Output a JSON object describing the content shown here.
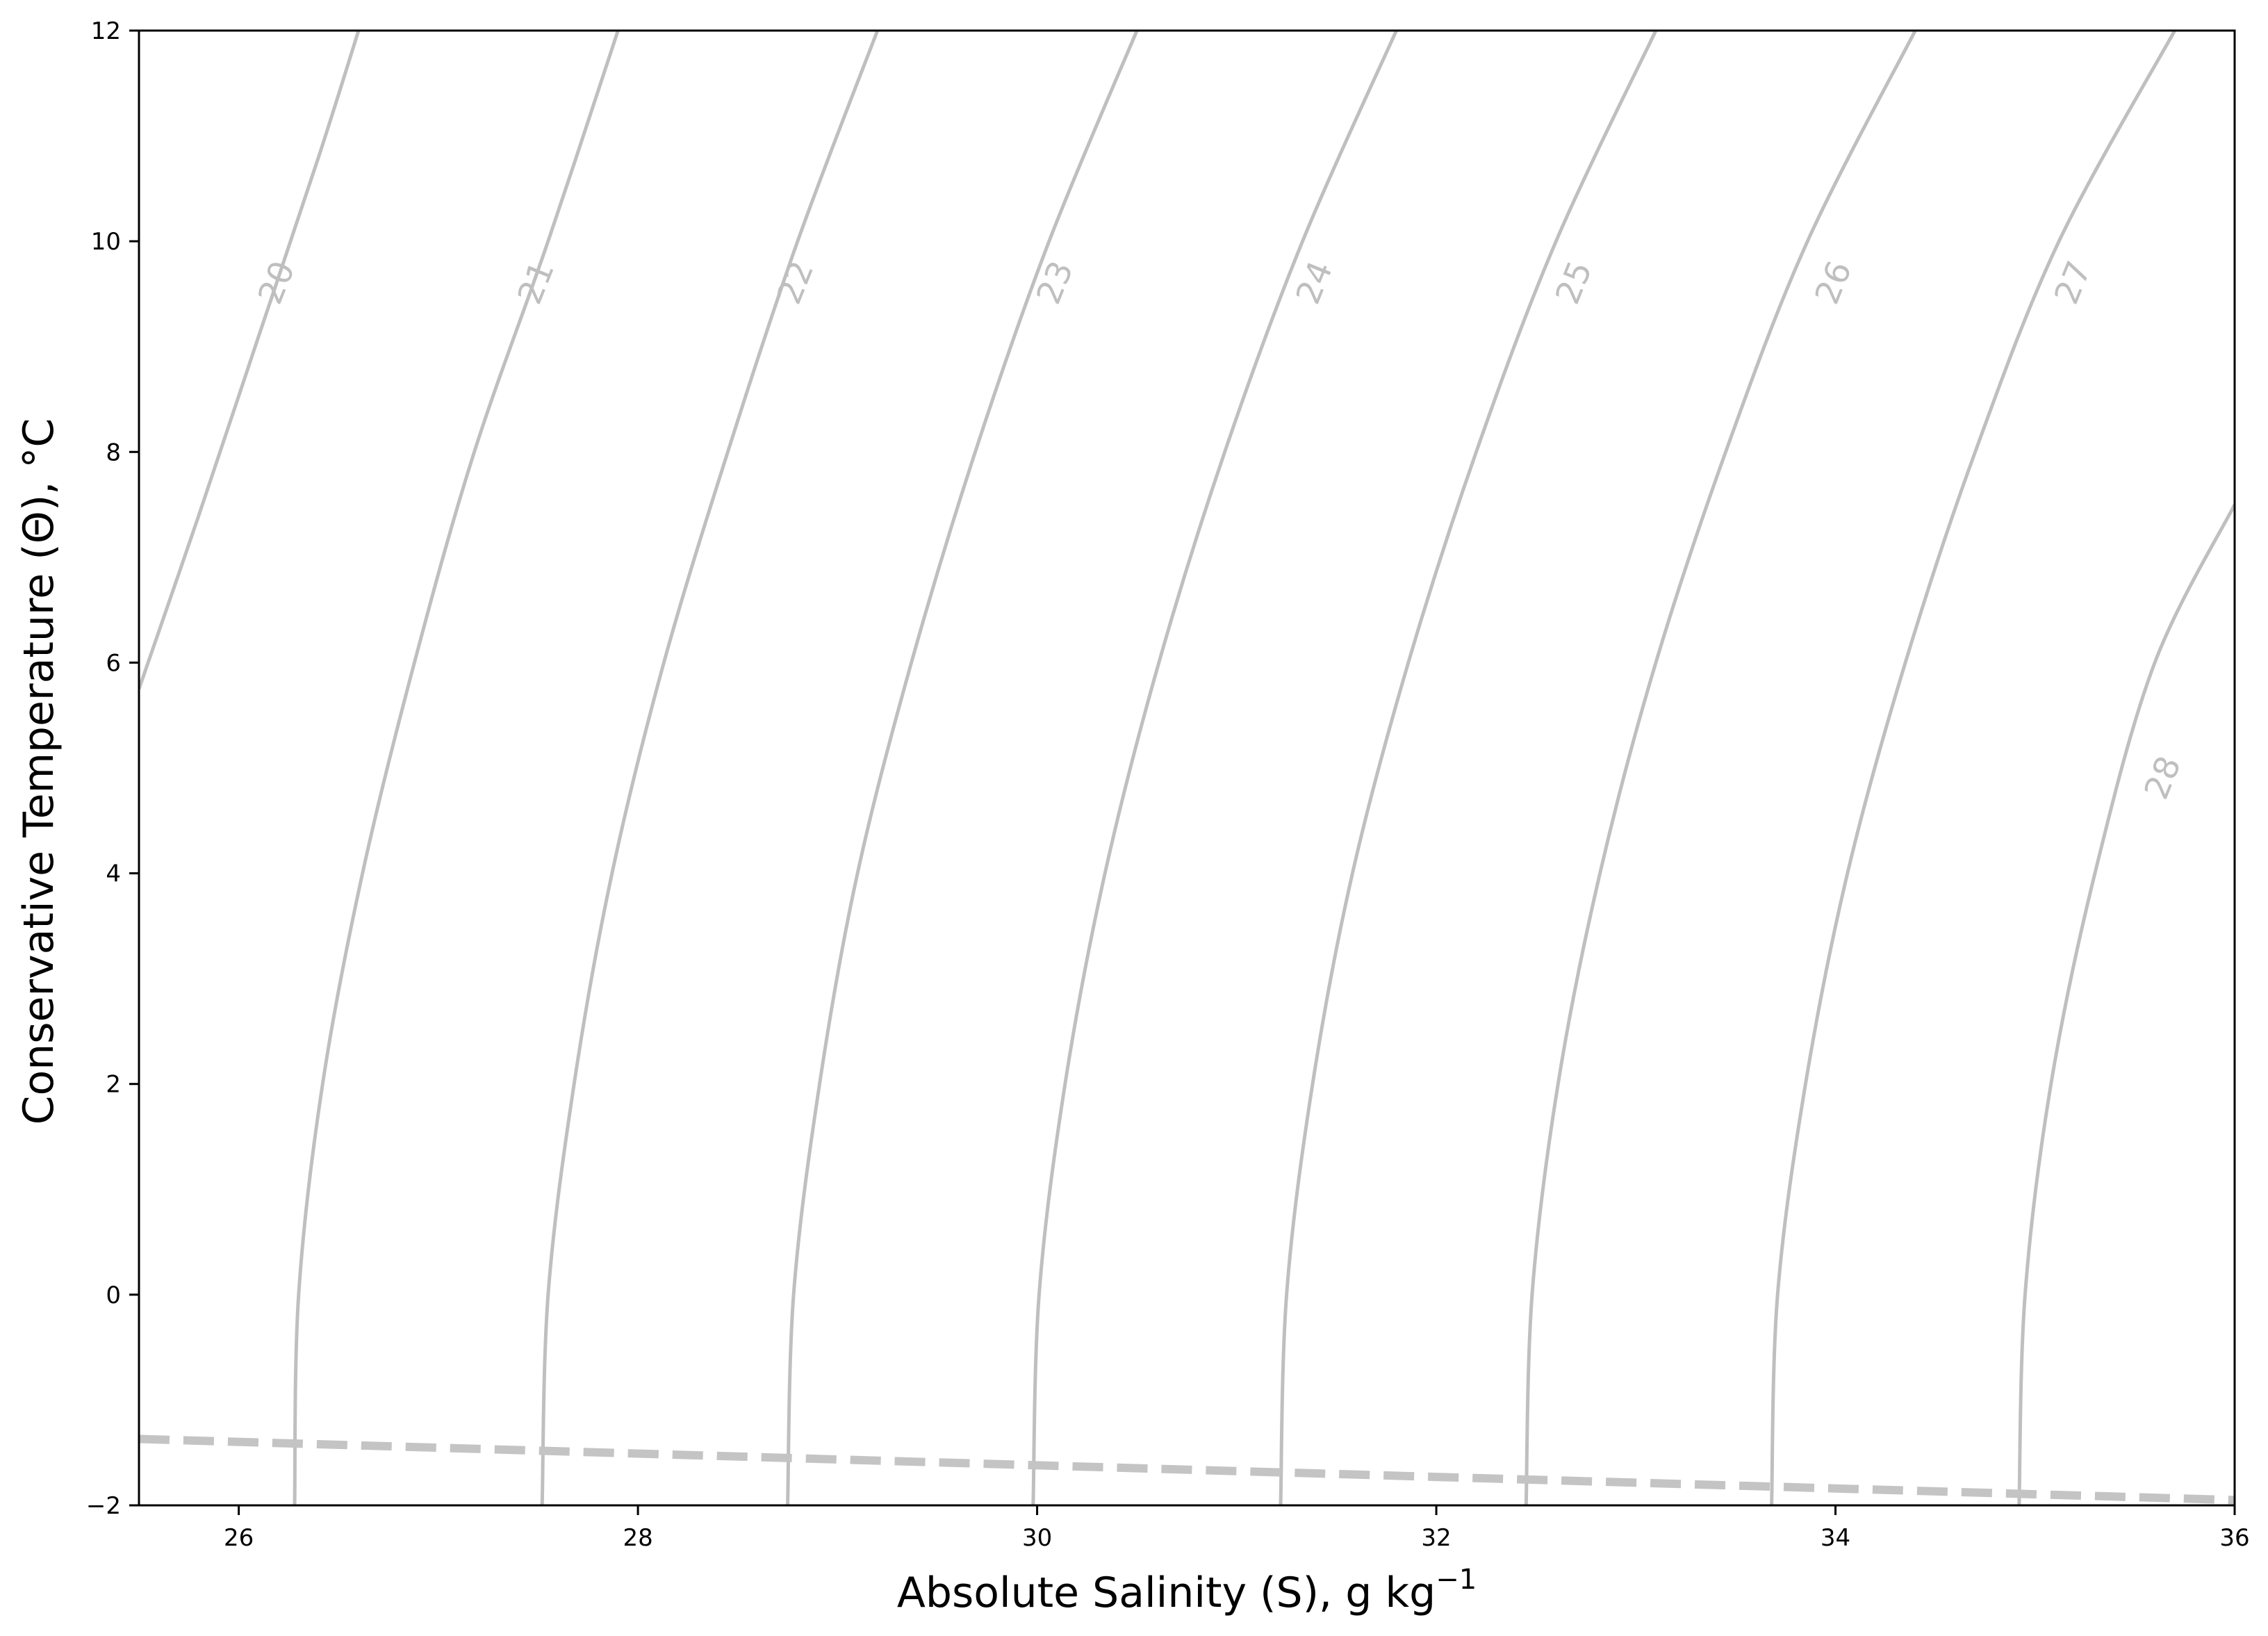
{
  "chart_data": {
    "type": "contour",
    "xlabel": "Absolute Salinity (S), g kg",
    "xlabel_superscript": "−1",
    "ylabel": "Conservative Temperature (Θ), °C",
    "xlim": [
      25.5,
      36
    ],
    "ylim": [
      -2,
      12
    ],
    "x_ticks": [
      26,
      28,
      30,
      32,
      34,
      36
    ],
    "y_ticks": [
      -2,
      0,
      2,
      4,
      6,
      8,
      10,
      12
    ],
    "x_tick_labels": [
      "26",
      "28",
      "30",
      "32",
      "34",
      "36"
    ],
    "y_tick_labels": [
      "−2",
      "0",
      "2",
      "4",
      "6",
      "8",
      "10",
      "12"
    ],
    "grid": false,
    "contour_color": "#bfbfbf",
    "freezing_line_color": "#c4c4c4",
    "contours": [
      {
        "level": 20,
        "label": "20",
        "label_at": [
          26.2,
          9.6
        ],
        "points": [
          [
            25.5,
            5.75
          ],
          [
            25.8,
            7.4
          ],
          [
            26.1,
            9.1
          ],
          [
            26.4,
            10.8
          ],
          [
            26.6,
            12.0
          ]
        ]
      },
      {
        "level": 21,
        "label": "21",
        "label_at": [
          27.5,
          9.6
        ],
        "points": [
          [
            26.28,
            -2.0
          ],
          [
            26.3,
            0.0
          ],
          [
            26.42,
            2.0
          ],
          [
            26.62,
            4.0
          ],
          [
            26.88,
            6.0
          ],
          [
            27.18,
            8.0
          ],
          [
            27.55,
            10.0
          ],
          [
            27.9,
            12.0
          ]
        ]
      },
      {
        "level": 22,
        "label": "22",
        "label_at": [
          28.8,
          9.6
        ],
        "points": [
          [
            27.52,
            -2.0
          ],
          [
            27.55,
            0.0
          ],
          [
            27.68,
            2.0
          ],
          [
            27.87,
            4.0
          ],
          [
            28.13,
            6.0
          ],
          [
            28.45,
            8.0
          ],
          [
            28.8,
            10.0
          ],
          [
            29.2,
            12.0
          ]
        ]
      },
      {
        "level": 23,
        "label": "23",
        "label_at": [
          30.1,
          9.6
        ],
        "points": [
          [
            28.75,
            -2.0
          ],
          [
            28.78,
            0.0
          ],
          [
            28.91,
            2.0
          ],
          [
            29.1,
            4.0
          ],
          [
            29.37,
            6.0
          ],
          [
            29.69,
            8.0
          ],
          [
            30.06,
            10.0
          ],
          [
            30.5,
            12.0
          ]
        ]
      },
      {
        "level": 24,
        "label": "24",
        "label_at": [
          31.4,
          9.6
        ],
        "points": [
          [
            29.98,
            -2.0
          ],
          [
            30.01,
            0.0
          ],
          [
            30.14,
            2.0
          ],
          [
            30.34,
            4.0
          ],
          [
            30.61,
            6.0
          ],
          [
            30.94,
            8.0
          ],
          [
            31.33,
            10.0
          ],
          [
            31.8,
            12.0
          ]
        ]
      },
      {
        "level": 25,
        "label": "25",
        "label_at": [
          32.7,
          9.6
        ],
        "points": [
          [
            31.22,
            -2.0
          ],
          [
            31.25,
            0.0
          ],
          [
            31.38,
            2.0
          ],
          [
            31.58,
            4.0
          ],
          [
            31.86,
            6.0
          ],
          [
            32.2,
            8.0
          ],
          [
            32.6,
            10.0
          ],
          [
            33.1,
            12.0
          ]
        ]
      },
      {
        "level": 26,
        "label": "26",
        "label_at": [
          34.0,
          9.6
        ],
        "points": [
          [
            32.45,
            -2.0
          ],
          [
            32.48,
            0.0
          ],
          [
            32.61,
            2.0
          ],
          [
            32.82,
            4.0
          ],
          [
            33.1,
            6.0
          ],
          [
            33.45,
            8.0
          ],
          [
            33.86,
            10.0
          ],
          [
            34.4,
            12.0
          ]
        ]
      },
      {
        "level": 27,
        "label": "27",
        "label_at": [
          35.2,
          9.6
        ],
        "points": [
          [
            33.68,
            -2.0
          ],
          [
            33.71,
            0.0
          ],
          [
            33.85,
            2.0
          ],
          [
            34.06,
            4.0
          ],
          [
            34.35,
            6.0
          ],
          [
            34.7,
            8.0
          ],
          [
            35.12,
            10.0
          ],
          [
            35.7,
            12.0
          ]
        ]
      },
      {
        "level": 28,
        "label": "28",
        "label_at": [
          35.65,
          4.9
        ],
        "points": [
          [
            34.92,
            -2.0
          ],
          [
            34.95,
            0.0
          ],
          [
            35.08,
            2.0
          ],
          [
            35.3,
            4.0
          ],
          [
            35.6,
            6.0
          ],
          [
            36.0,
            7.5
          ]
        ]
      }
    ],
    "freezing_line": {
      "points": [
        [
          25.5,
          -1.37
        ],
        [
          30.0,
          -1.62
        ],
        [
          32.0,
          -1.73
        ],
        [
          34.0,
          -1.84
        ],
        [
          36.0,
          -1.95
        ]
      ]
    }
  }
}
